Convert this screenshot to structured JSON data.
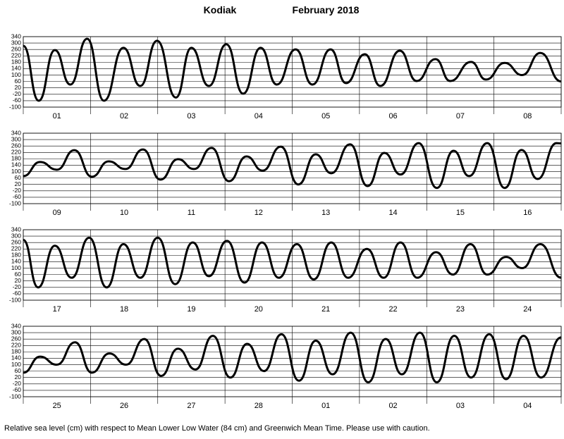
{
  "header": {
    "station": "Kodiak",
    "period": "February 2018"
  },
  "footer": "Relative sea level (cm) with respect to Mean Lower Low Water (84 cm) and Greenwich Mean Time. Please use with caution.",
  "chart_data": [
    {
      "type": "line",
      "categories": [
        "01",
        "02",
        "03",
        "04",
        "05",
        "06",
        "07",
        "08"
      ],
      "xlim": [
        0,
        8
      ],
      "xticks": [
        0,
        1,
        2,
        3,
        4,
        5,
        6,
        7,
        8
      ],
      "ylim": [
        -100,
        340
      ],
      "yticks": [
        -100,
        -60,
        -20,
        20,
        60,
        100,
        140,
        180,
        220,
        260,
        300,
        340
      ],
      "grid": true,
      "x": [
        0,
        0.23,
        0.47,
        0.7,
        0.95,
        1.2,
        1.49,
        1.74,
        1.99,
        2.27,
        2.5,
        2.76,
        3.02,
        3.27,
        3.53,
        3.77,
        4.05,
        4.3,
        4.57,
        4.8,
        5.08,
        5.31,
        5.6,
        5.85,
        6.13,
        6.35,
        6.66,
        6.88,
        7.16,
        7.42,
        7.69,
        8
      ],
      "series": [
        {
          "color": "#000000",
          "values": [
            283,
            -60,
            256,
            41,
            327,
            -60,
            270,
            32,
            314,
            -40,
            270,
            32,
            292,
            -16,
            270,
            41,
            260,
            41,
            260,
            50,
            230,
            32,
            252,
            63,
            200,
            63,
            182,
            72,
            176,
            100,
            238,
            60
          ]
        }
      ]
    },
    {
      "type": "line",
      "categories": [
        "09",
        "10",
        "11",
        "12",
        "13",
        "14",
        "15",
        "16"
      ],
      "xlim": [
        0,
        8
      ],
      "xticks": [
        0,
        1,
        2,
        3,
        4,
        5,
        6,
        7,
        8
      ],
      "ylim": [
        -100,
        340
      ],
      "yticks": [
        -100,
        -60,
        -20,
        20,
        60,
        100,
        140,
        180,
        220,
        260,
        300,
        340
      ],
      "grid": true,
      "x": [
        0,
        0.25,
        0.5,
        0.76,
        1.02,
        1.27,
        1.52,
        1.78,
        2.04,
        2.3,
        2.54,
        2.8,
        3.06,
        3.32,
        3.56,
        3.83,
        4.09,
        4.35,
        4.58,
        4.86,
        5.12,
        5.37,
        5.61,
        5.88,
        6.15,
        6.4,
        6.63,
        6.9,
        7.16,
        7.41,
        7.65,
        7.93,
        8
      ],
      "series": [
        {
          "color": "#000000",
          "values": [
            72,
            160,
            112,
            234,
            68,
            164,
            116,
            238,
            50,
            178,
            116,
            248,
            40,
            195,
            106,
            256,
            20,
            208,
            90,
            270,
            10,
            217,
            82,
            278,
            -2,
            230,
            72,
            278,
            -2,
            235,
            54,
            278,
            276
          ]
        }
      ]
    },
    {
      "type": "line",
      "categories": [
        "17",
        "18",
        "19",
        "20",
        "21",
        "22",
        "23",
        "24"
      ],
      "xlim": [
        0,
        8
      ],
      "xticks": [
        0,
        1,
        2,
        3,
        4,
        5,
        6,
        7,
        8
      ],
      "ylim": [
        -100,
        340
      ],
      "yticks": [
        -100,
        -60,
        -20,
        20,
        60,
        100,
        140,
        180,
        220,
        260,
        300,
        340
      ],
      "grid": true,
      "x": [
        0,
        0.22,
        0.47,
        0.72,
        0.98,
        1.24,
        1.49,
        1.74,
        2.0,
        2.26,
        2.52,
        2.76,
        3.03,
        3.29,
        3.55,
        3.8,
        4.07,
        4.32,
        4.58,
        4.83,
        5.11,
        5.36,
        5.61,
        5.86,
        6.14,
        6.39,
        6.65,
        6.9,
        7.18,
        7.42,
        7.69,
        8
      ],
      "series": [
        {
          "color": "#000000",
          "values": [
            276,
            -20,
            240,
            40,
            290,
            -20,
            250,
            40,
            290,
            0,
            260,
            50,
            270,
            10,
            260,
            40,
            250,
            30,
            260,
            40,
            220,
            40,
            260,
            40,
            200,
            60,
            250,
            60,
            170,
            100,
            250,
            40
          ]
        }
      ]
    },
    {
      "type": "line",
      "categories": [
        "25",
        "26",
        "27",
        "28",
        "01",
        "02",
        "03",
        "04"
      ],
      "xlim": [
        0,
        8
      ],
      "xticks": [
        0,
        1,
        2,
        3,
        4,
        5,
        6,
        7,
        8
      ],
      "ylim": [
        -100,
        340
      ],
      "yticks": [
        -100,
        -60,
        -20,
        20,
        60,
        100,
        140,
        180,
        220,
        260,
        300,
        340
      ],
      "grid": true,
      "x": [
        0,
        0.25,
        0.5,
        0.77,
        1.02,
        1.28,
        1.53,
        1.8,
        2.05,
        2.3,
        2.56,
        2.82,
        3.08,
        3.33,
        3.58,
        3.84,
        4.1,
        4.35,
        4.6,
        4.87,
        5.13,
        5.39,
        5.63,
        5.9,
        6.15,
        6.41,
        6.66,
        6.93,
        7.18,
        7.44,
        7.7,
        8
      ],
      "series": [
        {
          "color": "#000000",
          "values": [
            50,
            150,
            100,
            240,
            50,
            170,
            100,
            260,
            30,
            200,
            70,
            280,
            20,
            230,
            60,
            290,
            0,
            250,
            40,
            300,
            -10,
            260,
            40,
            300,
            -10,
            280,
            20,
            290,
            10,
            280,
            20,
            270
          ]
        }
      ]
    }
  ]
}
